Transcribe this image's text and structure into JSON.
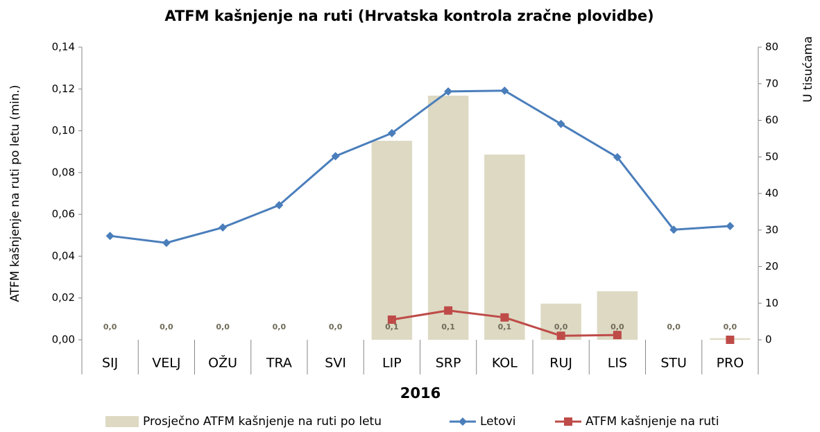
{
  "chart_data": {
    "type": "bar-line",
    "title": "ATFM kašnjenje na ruti (Hrvatska kontrola zračne plovidbe)",
    "ylabel": "ATFM kašnjenje na ruti po letu (min.)",
    "y2label": "U tisućama",
    "xlabel": "2016",
    "categories": [
      "SIJ",
      "VELJ",
      "OŽU",
      "TRA",
      "SVI",
      "LIP",
      "SRP",
      "KOL",
      "RUJ",
      "LIS",
      "STU",
      "PRO"
    ],
    "series": [
      {
        "name": "Prosječno ATFM kašnjenje na ruti po letu",
        "type": "bar",
        "color": "#ddd9c3",
        "axis": "y",
        "values": [
          0,
          0,
          0,
          0,
          0,
          0.0952,
          0.1168,
          0.0886,
          0.0173,
          0.0232,
          0,
          0.0007
        ],
        "value_labels": [
          "0,0",
          "0,0",
          "0,0",
          "0,0",
          "0,0",
          "0,1",
          "0,1",
          "0,1",
          "0,0",
          "0,0",
          "0,0",
          "0,0"
        ]
      },
      {
        "name": "Letovi",
        "type": "line",
        "marker": "diamond",
        "color": "#4a7ebb",
        "axis": "y2",
        "values": [
          28.4,
          26.5,
          30.7,
          36.8,
          50.2,
          56.5,
          67.9,
          68.1,
          59.0,
          49.9,
          30.1,
          31.1
        ]
      },
      {
        "name": "ATFM kašnjenje na ruti",
        "type": "line",
        "marker": "square",
        "color": "#be4b48",
        "axis": "y2",
        "values": [
          null,
          null,
          null,
          null,
          null,
          5.5,
          8.0,
          6.1,
          1.1,
          1.3,
          null,
          0
        ]
      }
    ],
    "ylim": [
      0,
      0.14
    ],
    "yticks": [
      {
        "value": 0,
        "label": "0,00"
      },
      {
        "value": 0.02,
        "label": "0,02"
      },
      {
        "value": 0.04,
        "label": "0,04"
      },
      {
        "value": 0.06,
        "label": "0,06"
      },
      {
        "value": 0.08,
        "label": "0,08"
      },
      {
        "value": 0.1,
        "label": "0,10"
      },
      {
        "value": 0.12,
        "label": "0,12"
      },
      {
        "value": 0.14,
        "label": "0,14"
      }
    ],
    "y2lim": [
      0,
      80
    ],
    "y2ticks": [
      0,
      10,
      20,
      30,
      40,
      50,
      60,
      70,
      80
    ],
    "grid": false,
    "legend": "bottom"
  }
}
